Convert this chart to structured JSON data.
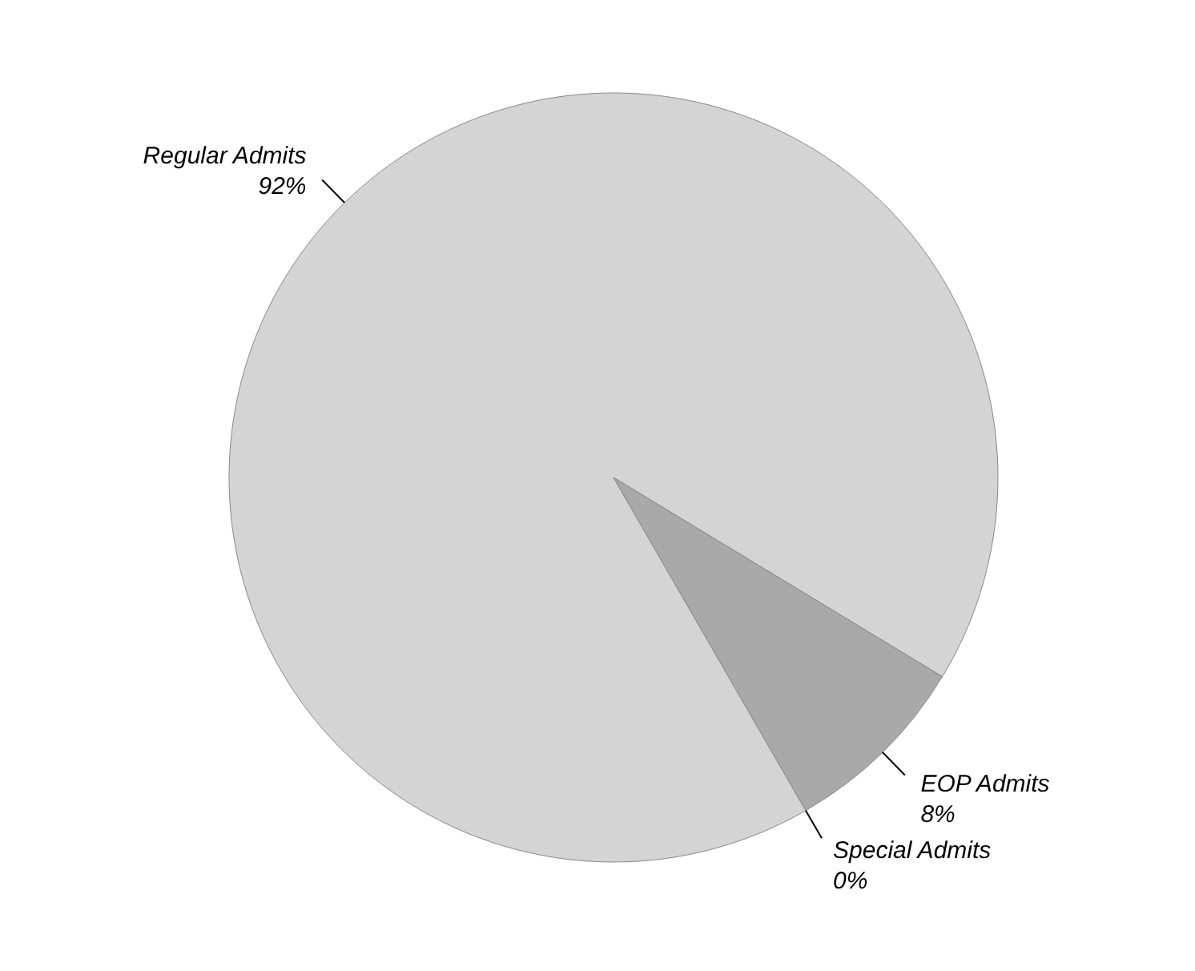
{
  "chart_data": {
    "type": "pie",
    "categories": [
      "Regular Admits",
      "EOP Admits",
      "Special Admits"
    ],
    "values": [
      92,
      8,
      0
    ],
    "value_labels": [
      "92%",
      "8%",
      "0%"
    ],
    "colors": [
      "#d4d4d4",
      "#a9a9a9",
      "#000000"
    ]
  }
}
